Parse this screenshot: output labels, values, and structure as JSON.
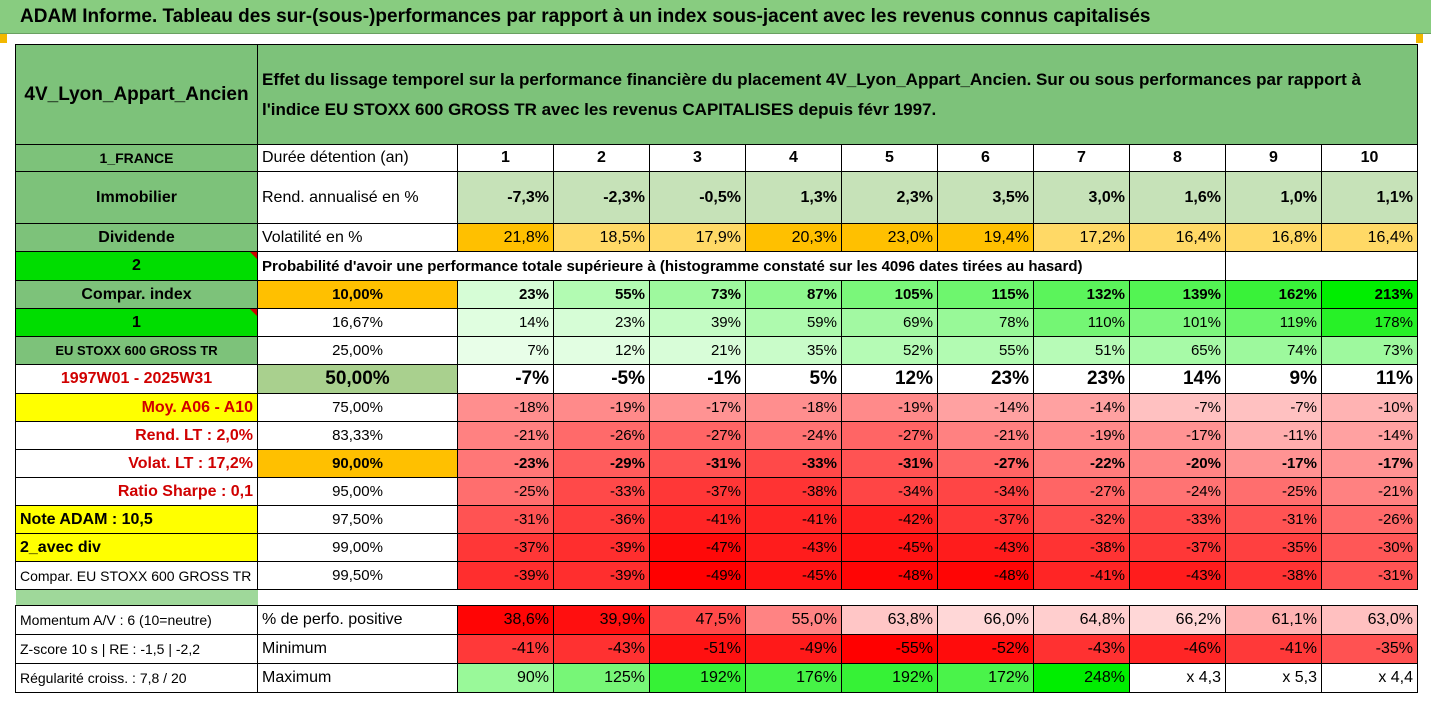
{
  "title": "ADAM Informe. Tableau des sur-(sous-)performances par rapport à un index sous-jacent avec les revenus connus capitalisés",
  "header": {
    "fund": "4V_Lyon_Appart_Ancien",
    "description": "Effet du lissage temporel sur la performance financière du placement 4V_Lyon_Appart_Ancien. Sur ou sous performances par rapport à l'indice EU STOXX 600 GROSS TR avec les revenus CAPITALISES depuis févr 1997."
  },
  "colors": {
    "header_green": "#7dc27a",
    "bright_green": "#00dd00",
    "yellow": "#ffff00",
    "orange": "#ffc000",
    "positive": "#00ee00",
    "negative": "#ff0000"
  },
  "side": {
    "country": "1_FRANCE",
    "category": "Immobilier",
    "type": "Dividende",
    "marker_2": "2",
    "compar": "Compar. index",
    "marker_1": "1",
    "index": "EU STOXX 600 GROSS TR",
    "period": "1997W01 - 2025W31",
    "moy": "Moy. A06 - A10",
    "rend_lt": "Rend. LT :   2,0%",
    "volat_lt": "Volat. LT :   17,2%",
    "sharpe": "Ratio Sharpe :   0,1",
    "note": "Note ADAM : 10,5",
    "avec_div": "2_avec div",
    "compar_index": "Compar. EU STOXX 600 GROSS TR",
    "momentum": "Momentum A/V : 6 (10=neutre)",
    "zscore": "Z-score 10 s  |  RE : -1,5  |  -2,2",
    "regularite": "Régularité croiss. : 7,8 / 20"
  },
  "rows": {
    "duree_label": "Durée détention (an)",
    "years": [
      "1",
      "2",
      "3",
      "4",
      "5",
      "6",
      "7",
      "8",
      "9",
      "10"
    ],
    "rend_label": "Rend. annualisé en %",
    "rend": [
      "-7,3%",
      "-2,3%",
      "-0,5%",
      "1,3%",
      "2,3%",
      "3,5%",
      "3,0%",
      "1,6%",
      "1,0%",
      "1,1%"
    ],
    "vol_label": "Volatilité en %",
    "vol": [
      "21,8%",
      "18,5%",
      "17,9%",
      "20,3%",
      "23,0%",
      "19,4%",
      "17,2%",
      "16,4%",
      "16,8%",
      "16,4%"
    ],
    "prob_label": "Probabilité d'avoir une performance totale supérieure à (histogramme constaté sur les 4096 dates tirées au hasard)"
  },
  "quantiles": [
    {
      "p": "10,00%",
      "v": [
        "23%",
        "55%",
        "73%",
        "87%",
        "105%",
        "115%",
        "132%",
        "139%",
        "162%",
        "213%"
      ]
    },
    {
      "p": "16,67%",
      "v": [
        "14%",
        "23%",
        "39%",
        "59%",
        "69%",
        "78%",
        "110%",
        "101%",
        "119%",
        "178%"
      ]
    },
    {
      "p": "25,00%",
      "v": [
        "7%",
        "12%",
        "21%",
        "35%",
        "52%",
        "55%",
        "51%",
        "65%",
        "74%",
        "73%"
      ]
    },
    {
      "p": "50,00%",
      "v": [
        "-7%",
        "-5%",
        "-1%",
        "5%",
        "12%",
        "23%",
        "23%",
        "14%",
        "9%",
        "11%"
      ]
    },
    {
      "p": "75,00%",
      "v": [
        "-18%",
        "-19%",
        "-17%",
        "-18%",
        "-19%",
        "-14%",
        "-14%",
        "-7%",
        "-7%",
        "-10%"
      ]
    },
    {
      "p": "83,33%",
      "v": [
        "-21%",
        "-26%",
        "-27%",
        "-24%",
        "-27%",
        "-21%",
        "-19%",
        "-17%",
        "-11%",
        "-14%"
      ]
    },
    {
      "p": "90,00%",
      "v": [
        "-23%",
        "-29%",
        "-31%",
        "-33%",
        "-31%",
        "-27%",
        "-22%",
        "-20%",
        "-17%",
        "-17%"
      ]
    },
    {
      "p": "95,00%",
      "v": [
        "-25%",
        "-33%",
        "-37%",
        "-38%",
        "-34%",
        "-34%",
        "-27%",
        "-24%",
        "-25%",
        "-21%"
      ]
    },
    {
      "p": "97,50%",
      "v": [
        "-31%",
        "-36%",
        "-41%",
        "-41%",
        "-42%",
        "-37%",
        "-32%",
        "-33%",
        "-31%",
        "-26%"
      ]
    },
    {
      "p": "99,00%",
      "v": [
        "-37%",
        "-39%",
        "-47%",
        "-43%",
        "-45%",
        "-43%",
        "-38%",
        "-37%",
        "-35%",
        "-30%"
      ]
    },
    {
      "p": "99,50%",
      "v": [
        "-39%",
        "-39%",
        "-49%",
        "-45%",
        "-48%",
        "-48%",
        "-41%",
        "-43%",
        "-38%",
        "-31%"
      ]
    }
  ],
  "stats": {
    "pos_label": "% de perfo. positive",
    "pos": [
      "38,6%",
      "39,9%",
      "47,5%",
      "55,0%",
      "63,8%",
      "66,0%",
      "64,8%",
      "66,2%",
      "61,1%",
      "63,0%"
    ],
    "min_label": "Minimum",
    "min": [
      "-41%",
      "-43%",
      "-51%",
      "-49%",
      "-55%",
      "-52%",
      "-43%",
      "-46%",
      "-41%",
      "-35%"
    ],
    "max_label": "Maximum",
    "max": [
      "90%",
      "125%",
      "192%",
      "176%",
      "192%",
      "172%",
      "248%",
      "x 4,3",
      "x 5,3",
      "x 4,4"
    ]
  }
}
